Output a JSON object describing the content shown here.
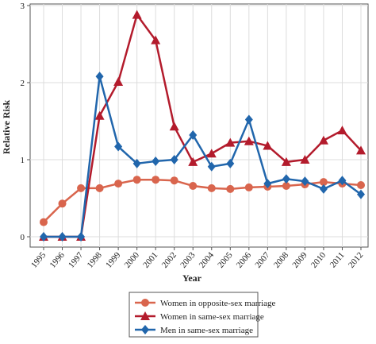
{
  "chart_data": {
    "type": "line",
    "x_label": "Year",
    "y_label": "Relative Risk",
    "categories": [
      "1995",
      "1996",
      "1997",
      "1998",
      "1999",
      "2000",
      "2001",
      "2002",
      "2003",
      "2004",
      "2005",
      "2006",
      "2007",
      "2008",
      "2009",
      "2010",
      "2011",
      "2012"
    ],
    "ylim": [
      0,
      3
    ],
    "yticks": [
      0,
      1,
      2,
      3
    ],
    "grid": true,
    "legend": "bottom",
    "series": [
      {
        "name": "Women in opposite-sex marriage",
        "color": "#d9654d",
        "marker": "circle",
        "values": [
          0.19,
          0.43,
          0.63,
          0.63,
          0.69,
          0.74,
          0.74,
          0.73,
          0.66,
          0.63,
          0.62,
          0.64,
          0.65,
          0.66,
          0.68,
          0.71,
          0.69,
          0.67
        ]
      },
      {
        "name": "Women in same-sex marriage",
        "color": "#b31b2c",
        "marker": "triangle",
        "values": [
          0,
          0,
          0,
          1.57,
          2.01,
          2.88,
          2.55,
          1.43,
          0.97,
          1.08,
          1.22,
          1.24,
          1.18,
          0.97,
          1.0,
          1.25,
          1.38,
          1.12
        ]
      },
      {
        "name": "Men in same-sex marriage",
        "color": "#2166ac",
        "marker": "diamond",
        "values": [
          0,
          0,
          0,
          2.08,
          1.17,
          0.95,
          0.98,
          1.0,
          1.32,
          0.91,
          0.95,
          1.52,
          0.69,
          0.75,
          0.72,
          0.62,
          0.73,
          0.55
        ]
      }
    ]
  }
}
